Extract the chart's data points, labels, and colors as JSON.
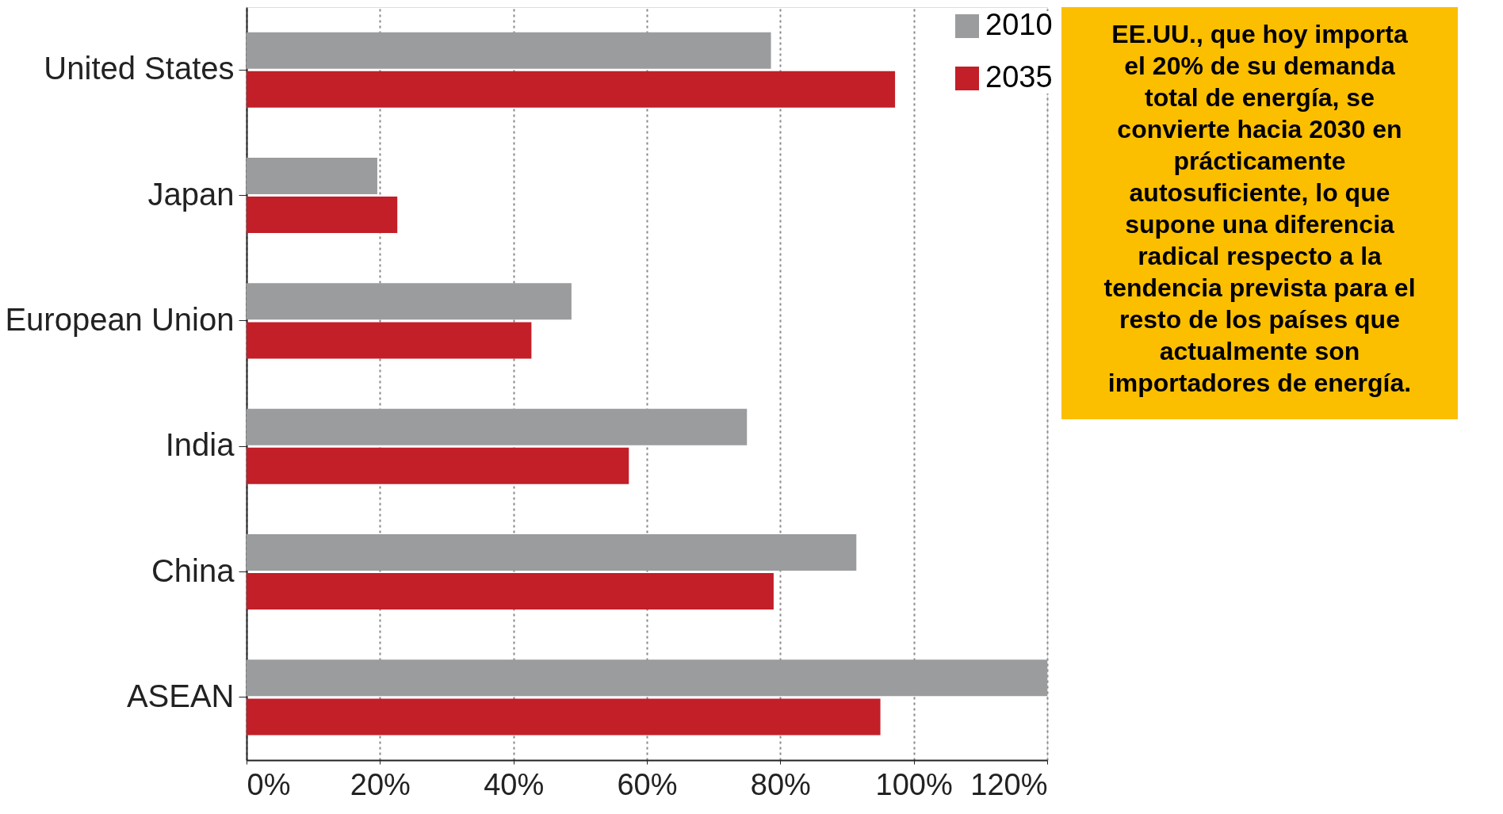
{
  "chart_data": {
    "type": "bar",
    "orientation": "horizontal",
    "categories": [
      "United States",
      "Japan",
      "European Union",
      "India",
      "China",
      "ASEAN"
    ],
    "series": [
      {
        "name": "2010",
        "color": "#9a9c9d",
        "values": [
          78.6,
          19.6,
          48.7,
          75.0,
          91.4,
          120
        ]
      },
      {
        "name": "2035",
        "color": "#c21f28",
        "values": [
          97.2,
          22.6,
          42.7,
          57.3,
          79.0,
          95.0
        ]
      }
    ],
    "xlim": [
      0,
      120
    ],
    "xticks": [
      {
        "value": 0,
        "label": "0%"
      },
      {
        "value": 20,
        "label": "20%"
      },
      {
        "value": 40,
        "label": "40%"
      },
      {
        "value": 60,
        "label": "60%"
      },
      {
        "value": 80,
        "label": "80%"
      },
      {
        "value": 100,
        "label": "100%"
      },
      {
        "value": 120,
        "label": "120%"
      }
    ],
    "grid": "x",
    "legend": "top right",
    "annotations": [
      "EE.UU., que hoy importa\nel 20% de su demanda\ntotal de energía, se\nconvierte hacia 2030 en\nprácticamente\nautosuficiente, lo que\nsupone una diferencia\nradical respecto a la\ntendencia prevista para el\nresto de los países que\nactualmente son\nimportadores de energía."
    ]
  }
}
